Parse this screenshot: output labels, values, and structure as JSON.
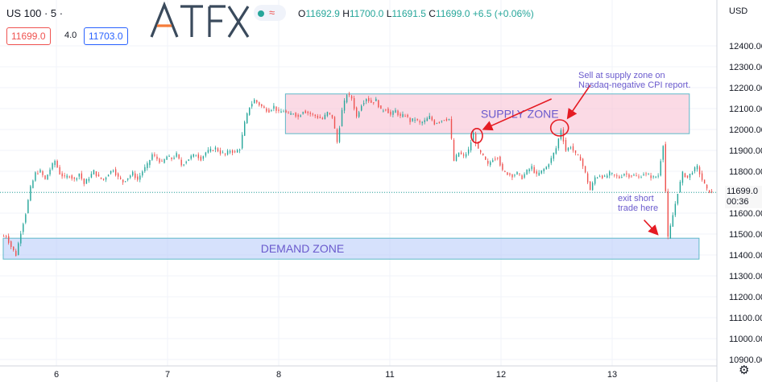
{
  "header": {
    "symbol": "US 100 · 5 ·",
    "logo_text": "ATFX",
    "ohlc": {
      "open_label": "O",
      "open": "11692.9",
      "high_label": "H",
      "high": "11700.0",
      "low_label": "L",
      "low": "11691.5",
      "close_label": "C",
      "close": "11699.0",
      "change": "+6.5 (+0.06%)"
    },
    "bid": "11699.0",
    "spread": "4.0",
    "ask": "11703.0",
    "wave_icon": "wave-icon",
    "colors": {
      "up": "#26a69a",
      "down": "#ef5350",
      "accent": "#2962ff",
      "logo": "#3a4a5c",
      "logo_accent": "#f57c3a"
    }
  },
  "axis": {
    "currency": "USD",
    "last_price": "11699.0",
    "countdown": "00:36",
    "settings_icon": "gear-icon"
  },
  "chart_data": {
    "type": "candlestick",
    "x_ticks": [
      "6",
      "7",
      "8",
      "11",
      "12",
      "13"
    ],
    "y_ticks": [
      12400,
      12300,
      12200,
      12100,
      12000,
      11900,
      11800,
      11700,
      11600,
      11500,
      11400,
      11300,
      11200,
      11100,
      11000,
      10900
    ],
    "ylim": [
      10850,
      12470
    ],
    "grid": true,
    "close_series": [
      11490,
      11440,
      11400,
      11510,
      11600,
      11720,
      11790,
      11800,
      11760,
      11810,
      11850,
      11790,
      11770,
      11780,
      11760,
      11790,
      11740,
      11770,
      11800,
      11770,
      11760,
      11790,
      11810,
      11770,
      11750,
      11770,
      11790,
      11760,
      11800,
      11830,
      11880,
      11860,
      11840,
      11870,
      11860,
      11880,
      11830,
      11850,
      11870,
      11880,
      11860,
      11890,
      11900,
      11910,
      11890,
      11880,
      11900,
      11890,
      11910,
      12030,
      12110,
      12140,
      12120,
      12100,
      12090,
      12110,
      12080,
      12090,
      12070,
      12080,
      12060,
      12090,
      12080,
      12070,
      12060,
      12050,
      12080,
      12060,
      11940,
      12090,
      12170,
      12150,
      12060,
      12120,
      12150,
      12130,
      12140,
      12090,
      12100,
      12070,
      12090,
      12060,
      12070,
      12040,
      12050,
      12030,
      12040,
      12060,
      12030,
      12040,
      12050,
      12050,
      11850,
      11890,
      11870,
      11900,
      11980,
      11900,
      11870,
      11830,
      11860,
      11870,
      11800,
      11790,
      11780,
      11790,
      11770,
      11800,
      11820,
      11780,
      11800,
      11820,
      11860,
      11910,
      12000,
      11900,
      11920,
      11880,
      11860,
      11790,
      11710,
      11770,
      11780,
      11770,
      11790,
      11780,
      11770,
      11790,
      11780,
      11780,
      11770,
      11790,
      11780,
      11770,
      11780,
      11930,
      11480,
      11590,
      11700,
      11790,
      11770,
      11800,
      11820,
      11760,
      11710,
      11700
    ],
    "zones": [
      {
        "label": "SUPPLY ZONE",
        "from": 11980,
        "to": 12170,
        "x_start": 58,
        "x_end": 141
      },
      {
        "label": "DEMAND ZONE",
        "from": 11380,
        "to": 11480,
        "x_start": 0,
        "x_end": 143
      }
    ],
    "annotations": [
      {
        "text": [
          "Sell at supply zone on",
          "Nasdaq-negative CPI report."
        ]
      },
      {
        "text": [
          "exit short",
          "trade here"
        ]
      }
    ],
    "last_price": 11699.0
  }
}
